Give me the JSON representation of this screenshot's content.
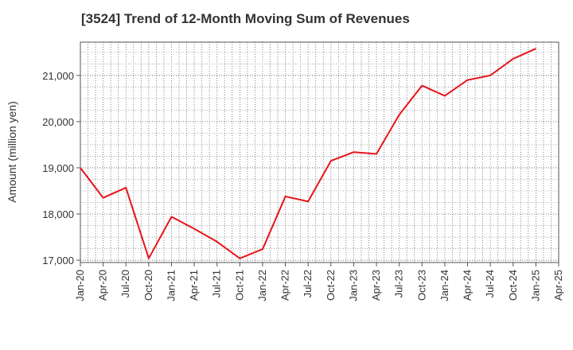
{
  "chart_data": {
    "type": "line",
    "title": "[3524]  Trend of 12-Month Moving Sum of Revenues",
    "xlabel": "",
    "ylabel": "Amount (million yen)",
    "x_tick_labels": [
      "Jan-20",
      "Apr-20",
      "Jul-20",
      "Oct-20",
      "Jan-21",
      "Apr-21",
      "Jul-21",
      "Oct-21",
      "Jan-22",
      "Apr-22",
      "Jul-22",
      "Oct-22",
      "Jan-23",
      "Apr-23",
      "Jul-23",
      "Oct-23",
      "Jan-24",
      "Apr-24",
      "Jul-24",
      "Oct-24",
      "Jan-25",
      "Apr-25"
    ],
    "y_tick_labels": [
      "17,000",
      "18,000",
      "19,000",
      "20,000",
      "21,000"
    ],
    "y_ticks": [
      17000,
      18000,
      19000,
      20000,
      21000
    ],
    "ylim": [
      16950,
      21720
    ],
    "grid": true,
    "grid_style": "dotted",
    "line_color": "#e8141b",
    "series": [
      {
        "x": [
          "Jan-20",
          "Apr-20",
          "Jul-20",
          "Oct-20",
          "Jan-21",
          "Apr-21",
          "Jul-21",
          "Oct-21",
          "Jan-22",
          "Apr-22",
          "Jul-22",
          "Oct-22",
          "Jan-23",
          "Apr-23",
          "Jul-23",
          "Oct-23",
          "Jan-24",
          "Apr-24",
          "Jul-24",
          "Oct-24",
          "Jan-25"
        ],
        "values": [
          19000,
          18350,
          18570,
          17040,
          17940,
          17680,
          17400,
          17040,
          17240,
          18380,
          18270,
          19150,
          19340,
          19300,
          20150,
          20780,
          20560,
          20900,
          21000,
          21360,
          21580
        ]
      }
    ]
  }
}
